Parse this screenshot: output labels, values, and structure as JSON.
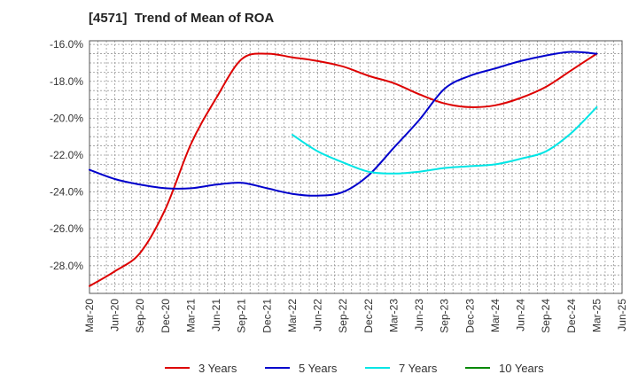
{
  "chart_data": {
    "type": "line",
    "title": "[4571]  Trend of Mean of ROA",
    "xlabel": "",
    "ylabel": "",
    "categories": [
      "Mar-20",
      "Jun-20",
      "Sep-20",
      "Dec-20",
      "Mar-21",
      "Jun-21",
      "Sep-21",
      "Dec-21",
      "Mar-22",
      "Jun-22",
      "Sep-22",
      "Dec-22",
      "Mar-23",
      "Jun-23",
      "Sep-23",
      "Dec-23",
      "Mar-24",
      "Jun-24",
      "Sep-24",
      "Dec-24",
      "Mar-25",
      "Jun-25"
    ],
    "ylim": [
      -29.5,
      -15.8
    ],
    "yticks": [
      -16.0,
      -18.0,
      -20.0,
      -22.0,
      -24.0,
      -26.0,
      -28.0
    ],
    "ytick_labels": [
      "-16.0%",
      "-18.0%",
      "-20.0%",
      "-22.0%",
      "-24.0%",
      "-26.0%",
      "-28.0%"
    ],
    "grid": true,
    "legend_position": "bottom",
    "series": [
      {
        "name": "3 Years",
        "color": "#dd0000",
        "values": [
          -29.1,
          -28.3,
          -27.3,
          -24.9,
          -21.4,
          -18.9,
          -16.8,
          -16.5,
          -16.7,
          -16.9,
          -17.2,
          -17.7,
          -18.1,
          -18.7,
          -19.2,
          -19.4,
          -19.3,
          -18.9,
          -18.3,
          -17.4,
          -16.5,
          null
        ]
      },
      {
        "name": "5 Years",
        "color": "#0000cc",
        "values": [
          -22.8,
          -23.3,
          -23.6,
          -23.8,
          -23.8,
          -23.6,
          -23.5,
          -23.8,
          -24.1,
          -24.2,
          -24.0,
          -23.1,
          -21.6,
          -20.1,
          -18.4,
          -17.7,
          -17.3,
          -16.9,
          -16.6,
          -16.4,
          -16.5,
          null
        ]
      },
      {
        "name": "7 Years",
        "color": "#00e5e5",
        "values": [
          null,
          null,
          null,
          null,
          null,
          null,
          null,
          null,
          -20.9,
          -21.8,
          -22.4,
          -22.9,
          -23.0,
          -22.9,
          -22.7,
          -22.6,
          -22.5,
          -22.2,
          -21.8,
          -20.8,
          -19.4,
          null
        ]
      },
      {
        "name": "10 Years",
        "color": "#008800",
        "values": [
          null,
          null,
          null,
          null,
          null,
          null,
          null,
          null,
          null,
          null,
          null,
          null,
          null,
          null,
          null,
          null,
          null,
          null,
          null,
          null,
          null,
          null
        ]
      }
    ]
  }
}
